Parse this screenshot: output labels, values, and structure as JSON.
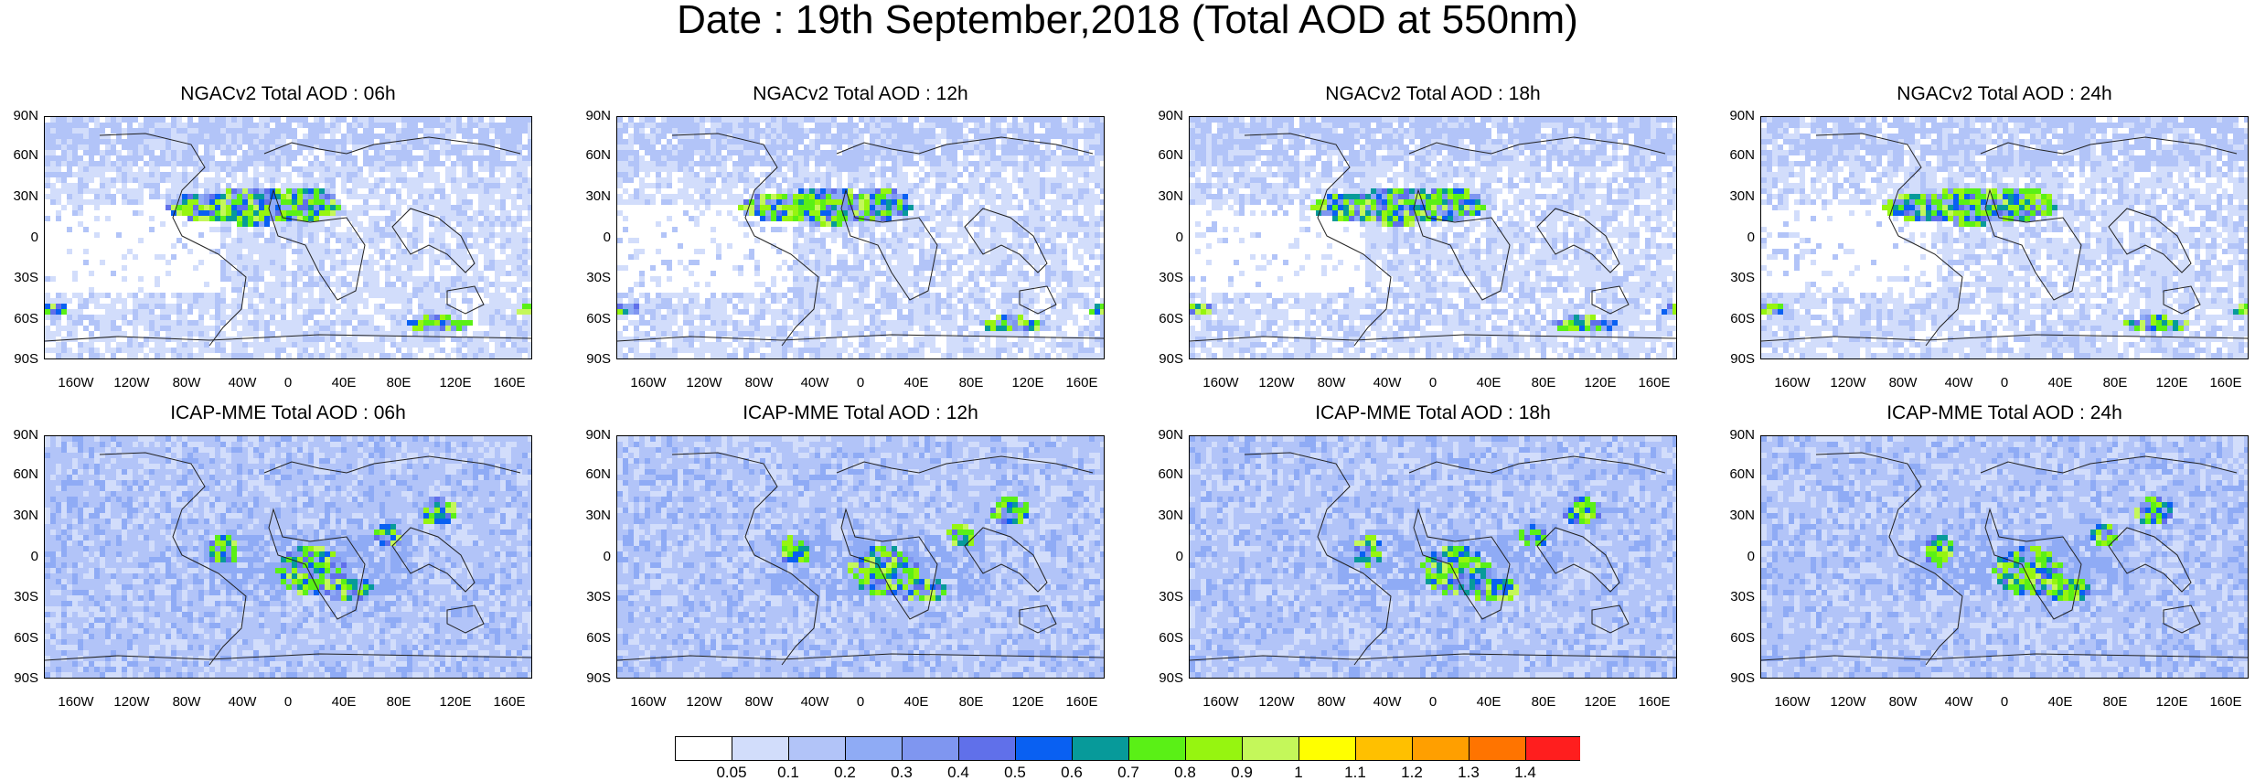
{
  "title": "Date : 19th September,2018 (Total AOD at 550nm)",
  "panels": [
    {
      "title": "NGACv2 Total AOD : 06h",
      "model": "NGACv2",
      "hour": "06h"
    },
    {
      "title": "NGACv2 Total AOD : 12h",
      "model": "NGACv2",
      "hour": "12h"
    },
    {
      "title": "NGACv2 Total AOD : 18h",
      "model": "NGACv2",
      "hour": "18h"
    },
    {
      "title": "NGACv2 Total AOD : 24h",
      "model": "NGACv2",
      "hour": "24h"
    },
    {
      "title": "ICAP-MME Total AOD : 06h",
      "model": "ICAP-MME",
      "hour": "06h"
    },
    {
      "title": "ICAP-MME Total AOD : 12h",
      "model": "ICAP-MME",
      "hour": "12h"
    },
    {
      "title": "ICAP-MME Total AOD : 18h",
      "model": "ICAP-MME",
      "hour": "18h"
    },
    {
      "title": "ICAP-MME Total AOD : 24h",
      "model": "ICAP-MME",
      "hour": "24h"
    }
  ],
  "lat_ticks": [
    "90N",
    "60N",
    "30N",
    "0",
    "30S",
    "60S",
    "90S"
  ],
  "lon_ticks": [
    "160W",
    "120W",
    "80W",
    "40W",
    "0",
    "40E",
    "80E",
    "120E",
    "160E"
  ],
  "colorbar": {
    "labels": [
      "0.05",
      "0.1",
      "0.2",
      "0.3",
      "0.4",
      "0.5",
      "0.6",
      "0.7",
      "0.8",
      "0.9",
      "1",
      "1.1",
      "1.2",
      "1.3",
      "1.4"
    ],
    "colors": [
      "#ffffff",
      "#d2ddfb",
      "#b2c4f8",
      "#8fabf5",
      "#7f96f0",
      "#6070ea",
      "#0960f2",
      "#079a9a",
      "#5af016",
      "#96f510",
      "#c4f75a",
      "#ffff00",
      "#ffc000",
      "#ff9f00",
      "#ff7400",
      "#ff1e1e"
    ]
  }
}
